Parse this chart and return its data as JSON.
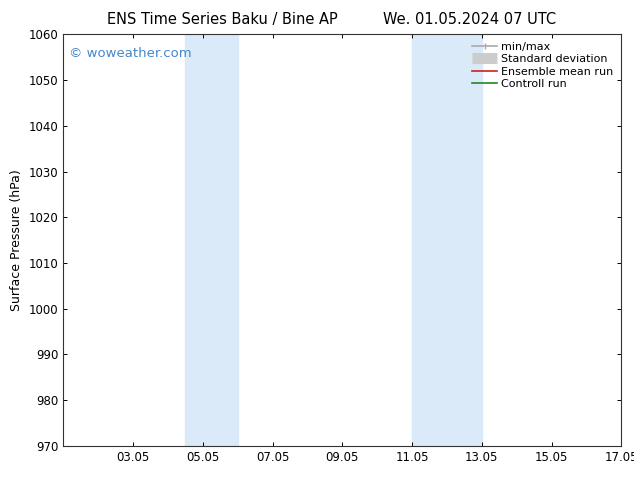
{
  "title_left": "ENS Time Series Baku / Bine AP",
  "title_right": "We. 01.05.2024 07 UTC",
  "ylabel": "Surface Pressure (hPa)",
  "ylim": [
    970,
    1060
  ],
  "yticks": [
    970,
    980,
    990,
    1000,
    1010,
    1020,
    1030,
    1040,
    1050,
    1060
  ],
  "xlim": [
    0,
    16
  ],
  "xtick_labels": [
    "03.05",
    "05.05",
    "07.05",
    "09.05",
    "11.05",
    "13.05",
    "15.05",
    "17.05"
  ],
  "xtick_positions": [
    2,
    4,
    6,
    8,
    10,
    12,
    14,
    16
  ],
  "shaded_bands": [
    {
      "xmin": 3.5,
      "xmax": 5.0
    },
    {
      "xmin": 10.0,
      "xmax": 12.0
    }
  ],
  "shaded_color": "#daeaf8",
  "watermark": "© woweather.com",
  "watermark_color": "#4488cc",
  "bg_color": "#ffffff",
  "spine_color": "#333333",
  "title_fontsize": 10.5,
  "tick_fontsize": 8.5,
  "ylabel_fontsize": 9,
  "watermark_fontsize": 9.5,
  "legend_fontsize": 8
}
